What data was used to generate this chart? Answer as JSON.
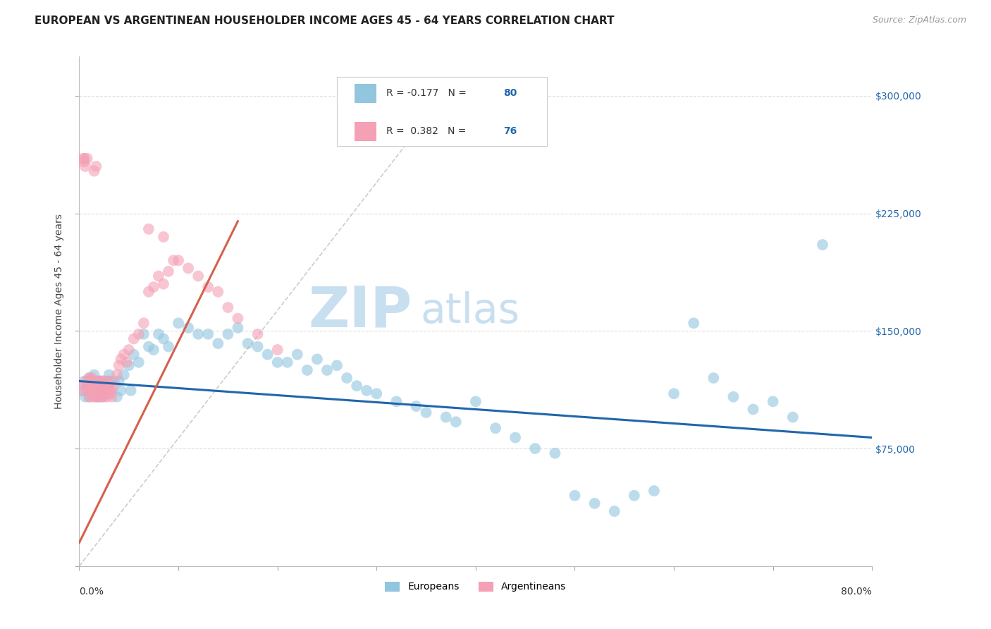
{
  "title": "EUROPEAN VS ARGENTINEAN HOUSEHOLDER INCOME AGES 45 - 64 YEARS CORRELATION CHART",
  "source": "Source: ZipAtlas.com",
  "ylabel": "Householder Income Ages 45 - 64 years",
  "y_tick_labels": [
    "$75,000",
    "$150,000",
    "$225,000",
    "$300,000"
  ],
  "y_tick_values": [
    75000,
    150000,
    225000,
    300000
  ],
  "europeans_color": "#92c5de",
  "argentineans_color": "#f4a0b5",
  "blue_line_color": "#2166ac",
  "pink_line_color": "#d6604d",
  "dashed_line_color": "#cccccc",
  "background_color": "#ffffff",
  "grid_color": "#dddddd",
  "watermark_zip": "ZIP",
  "watermark_atlas": "atlas",
  "watermark_color": "#c8dff0",
  "xlim": [
    0,
    80
  ],
  "ylim": [
    0,
    325000
  ],
  "title_fontsize": 11,
  "source_fontsize": 9,
  "axis_label_fontsize": 10,
  "marker_size": 130,
  "marker_alpha": 0.6,
  "eu_line_x": [
    0,
    80
  ],
  "eu_line_y": [
    118000,
    82000
  ],
  "ar_line_x": [
    0,
    16
  ],
  "ar_line_y": [
    15000,
    220000
  ],
  "dash_line_x": [
    0,
    38
  ],
  "dash_line_y": [
    0,
    310000
  ]
}
